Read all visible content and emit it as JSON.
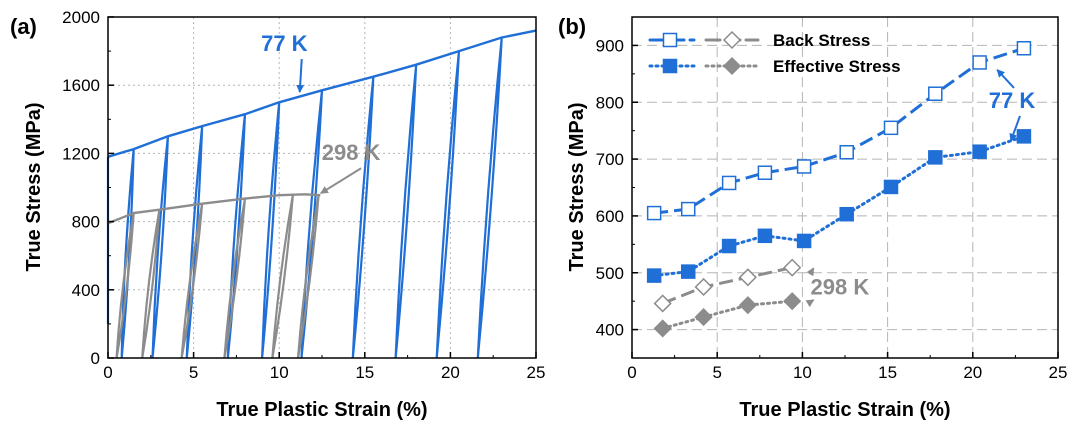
{
  "colors": {
    "blue": "#1f6fd6",
    "gray": "#8c8c8c",
    "grid": "#b5b5b5",
    "axis": "#000000"
  },
  "chart_data": [
    {
      "type": "line",
      "panel_label": "(a)",
      "title": "",
      "xlabel": "True Plastic Strain (%)",
      "ylabel": "True Stress (MPa)",
      "xlim": [
        0,
        25
      ],
      "ylim": [
        0,
        2000
      ],
      "xticks": [
        0,
        5,
        10,
        15,
        20,
        25
      ],
      "yticks": [
        0,
        400,
        800,
        1200,
        1600,
        2000
      ],
      "grid": true,
      "annotations": [
        {
          "text": "77 K",
          "color": "#1f6fd6",
          "x": 10.3,
          "y": 1800,
          "arrow_to": [
            11.2,
            1560
          ]
        },
        {
          "text": "298 K",
          "color": "#8c8c8c",
          "x": 14.2,
          "y": 1160,
          "arrow_to": [
            12.2,
            990
          ]
        }
      ],
      "series": [
        {
          "name": "77 K",
          "color": "#1f6fd6",
          "envelope": [
            [
              0,
              1180
            ],
            [
              1.5,
              1225
            ],
            [
              3.5,
              1300
            ],
            [
              5.5,
              1360
            ],
            [
              8,
              1430
            ],
            [
              10,
              1500
            ],
            [
              12.5,
              1570
            ],
            [
              15.5,
              1650
            ],
            [
              18,
              1720
            ],
            [
              20.5,
              1800
            ],
            [
              23,
              1880
            ],
            [
              25,
              1920
            ]
          ],
          "unload_reload_cycles": [
            {
              "top": [
                1.5,
                1225
              ],
              "bottom": [
                0.8,
                0
              ]
            },
            {
              "top": [
                3.5,
                1300
              ],
              "bottom": [
                2.6,
                0
              ]
            },
            {
              "top": [
                5.5,
                1360
              ],
              "bottom": [
                4.6,
                0
              ]
            },
            {
              "top": [
                8,
                1430
              ],
              "bottom": [
                7,
                0
              ]
            },
            {
              "top": [
                10,
                1500
              ],
              "bottom": [
                9,
                0
              ]
            },
            {
              "top": [
                12.5,
                1570
              ],
              "bottom": [
                11.3,
                0
              ]
            },
            {
              "top": [
                15.5,
                1650
              ],
              "bottom": [
                14.3,
                0
              ]
            },
            {
              "top": [
                18,
                1720
              ],
              "bottom": [
                16.8,
                0
              ]
            },
            {
              "top": [
                20.5,
                1800
              ],
              "bottom": [
                19.2,
                0
              ]
            },
            {
              "top": [
                23,
                1880
              ],
              "bottom": [
                21.6,
                0
              ]
            }
          ],
          "initial_elastic": [
            [
              0,
              200
            ],
            [
              0,
              1180
            ]
          ]
        },
        {
          "name": "298 K",
          "color": "#8c8c8c",
          "envelope": [
            [
              0,
              790
            ],
            [
              1.5,
              850
            ],
            [
              3,
              870
            ],
            [
              5.5,
              905
            ],
            [
              8,
              935
            ],
            [
              10,
              955
            ],
            [
              11.5,
              960
            ],
            [
              12.4,
              955
            ]
          ],
          "unload_reload_cycles": [
            {
              "top": [
                1.5,
                850
              ],
              "bottom": [
                0.5,
                0
              ]
            },
            {
              "top": [
                3,
                870
              ],
              "bottom": [
                2,
                0
              ]
            },
            {
              "top": [
                5.5,
                905
              ],
              "bottom": [
                4.3,
                0
              ]
            },
            {
              "top": [
                8,
                935
              ],
              "bottom": [
                6.8,
                0
              ]
            },
            {
              "top": [
                10.8,
                958
              ],
              "bottom": [
                9.6,
                0
              ]
            },
            {
              "top": [
                12.3,
                955
              ],
              "bottom": [
                11.1,
                0
              ]
            }
          ]
        }
      ]
    },
    {
      "type": "line",
      "panel_label": "(b)",
      "title": "",
      "xlabel": "True Plastic Strain (%)",
      "ylabel": "True Stress (MPa)",
      "xlim": [
        0,
        25
      ],
      "ylim": [
        350,
        950
      ],
      "xticks": [
        0,
        5,
        10,
        15,
        20,
        25
      ],
      "yticks": [
        400,
        500,
        600,
        700,
        800,
        900
      ],
      "grid": true,
      "legend": {
        "position": "top-left",
        "entries": [
          {
            "label": "Back Stress",
            "styles": [
              "blue-dashed-open-square",
              "gray-dashed-open-diamond"
            ]
          },
          {
            "label": "Effective Stress",
            "styles": [
              "blue-dotted-filled-square",
              "gray-dotted-filled-diamond"
            ]
          }
        ]
      },
      "annotations": [
        {
          "text": "77 K",
          "color": "#1f6fd6",
          "x": 22.3,
          "y": 790,
          "arrows_to": [
            [
              21.2,
              864
            ],
            [
              22,
              725
            ]
          ]
        },
        {
          "text": "298 K",
          "color": "#8c8c8c",
          "x": 12.2,
          "y": 462,
          "arrows_to": [
            [
              10.3,
              508
            ],
            [
              10.3,
              452
            ]
          ]
        }
      ],
      "series": [
        {
          "name": "Back Stress (77 K)",
          "color": "#1f6fd6",
          "line": "dashed",
          "marker": "square",
          "filled": false,
          "x": [
            1.3,
            3.3,
            5.7,
            7.8,
            10.1,
            12.6,
            15.2,
            17.8,
            20.4,
            23.0
          ],
          "y": [
            605,
            612,
            658,
            676,
            687,
            712,
            755,
            815,
            870,
            895
          ]
        },
        {
          "name": "Effective Stress (77 K)",
          "color": "#1f6fd6",
          "line": "dotted",
          "marker": "square",
          "filled": true,
          "x": [
            1.3,
            3.3,
            5.7,
            7.8,
            10.1,
            12.6,
            15.2,
            17.8,
            20.4,
            23.0
          ],
          "y": [
            495,
            502,
            547,
            565,
            556,
            603,
            651,
            703,
            713,
            740
          ]
        },
        {
          "name": "Back Stress (298 K)",
          "color": "#8c8c8c",
          "line": "dashed",
          "marker": "diamond",
          "filled": false,
          "x": [
            1.8,
            4.2,
            6.8,
            9.4
          ],
          "y": [
            446,
            475,
            492,
            509
          ]
        },
        {
          "name": "Effective Stress (298 K)",
          "color": "#8c8c8c",
          "line": "dotted",
          "marker": "diamond",
          "filled": true,
          "x": [
            1.8,
            4.2,
            6.8,
            9.4
          ],
          "y": [
            402,
            422,
            443,
            450
          ]
        }
      ]
    }
  ]
}
